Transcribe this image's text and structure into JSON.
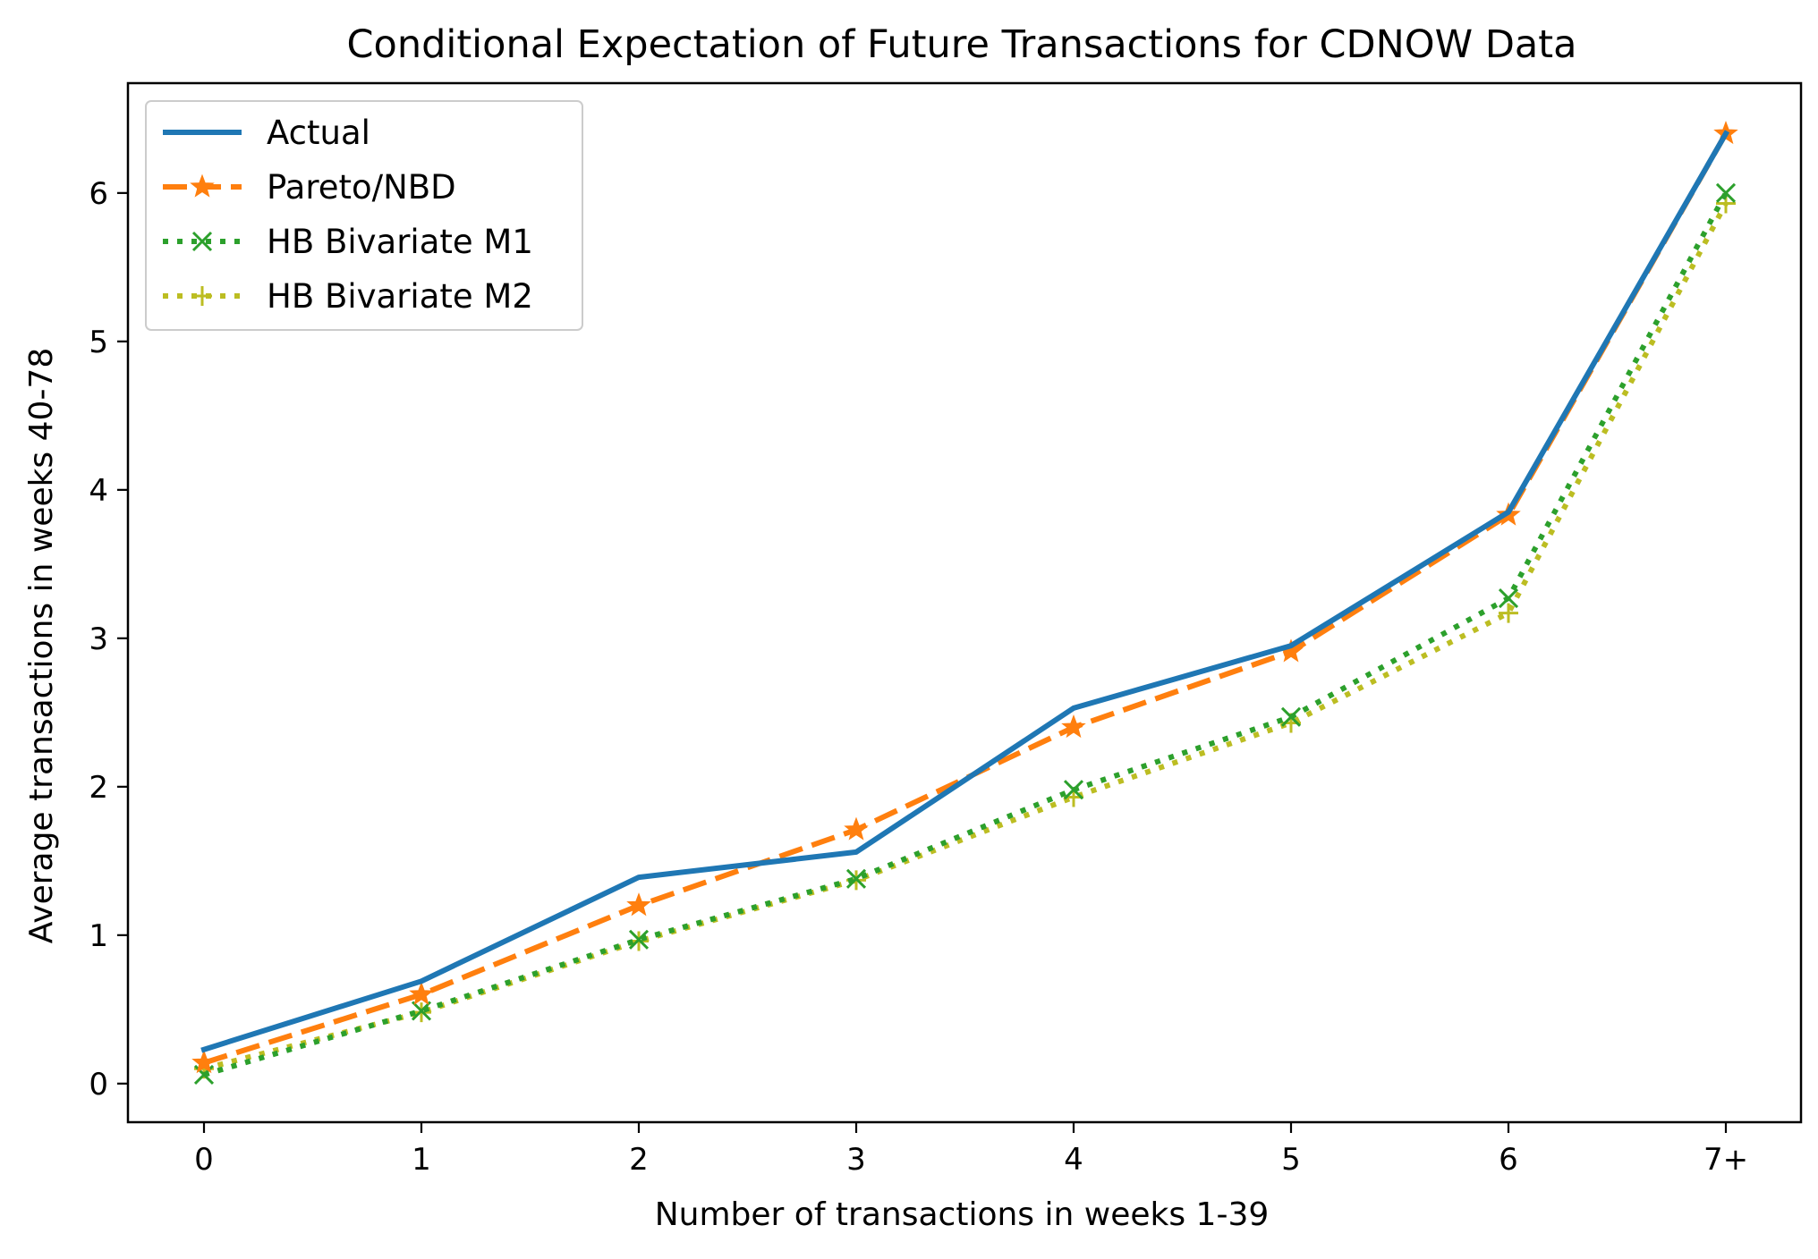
{
  "chart_data": {
    "type": "line",
    "title": "Conditional Expectation of Future Transactions for CDNOW Data",
    "xlabel": "Number of transactions in weeks 1-39",
    "ylabel": "Average transactions in weeks 40-78",
    "categories": [
      "0",
      "1",
      "2",
      "3",
      "4",
      "5",
      "6",
      "7+"
    ],
    "ylim": [
      -0.26,
      6.74
    ],
    "yticks": [
      0,
      1,
      2,
      3,
      4,
      5,
      6
    ],
    "grid": false,
    "legend_position": "top-left",
    "series": [
      {
        "name": "Actual",
        "values": [
          0.23,
          0.69,
          1.39,
          1.56,
          2.53,
          2.95,
          3.85,
          6.4
        ],
        "color": "#1f77b4",
        "linestyle": "solid",
        "marker": "none"
      },
      {
        "name": "Pareto/NBD",
        "values": [
          0.14,
          0.6,
          1.2,
          1.71,
          2.4,
          2.91,
          3.83,
          6.4
        ],
        "color": "#ff7f0e",
        "linestyle": "dashed",
        "marker": "star"
      },
      {
        "name": "HB Bivariate M1",
        "values": [
          0.06,
          0.49,
          0.97,
          1.38,
          1.98,
          2.47,
          3.27,
          6.0
        ],
        "color": "#2ca02c",
        "linestyle": "dotted",
        "marker": "x"
      },
      {
        "name": "HB Bivariate M2",
        "values": [
          0.1,
          0.48,
          0.96,
          1.37,
          1.93,
          2.43,
          3.17,
          5.93
        ],
        "color": "#bcbd22",
        "linestyle": "dotted",
        "marker": "plus"
      }
    ]
  }
}
